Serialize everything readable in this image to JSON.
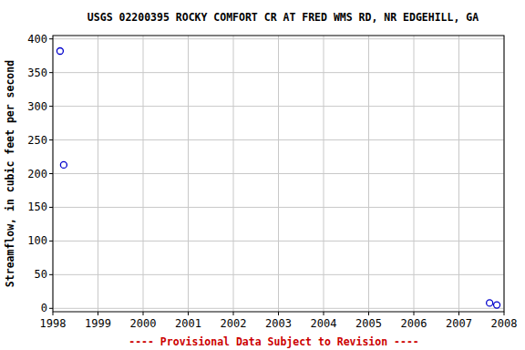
{
  "chart_data": {
    "type": "scatter",
    "title": "USGS 02200395 ROCKY COMFORT CR AT FRED WMS RD, NR EDGEHILL, GA",
    "y_label": "Streamflow, in cubic feet per second",
    "annotations": [
      "---- Provisional Data Subject to Revision ----"
    ],
    "x": [
      1998.16,
      1998.24,
      2007.68,
      2007.84
    ],
    "values": [
      382,
      213,
      8,
      5
    ],
    "color": "#0000cc",
    "marker": "circle-open",
    "xlim": [
      1998,
      2008
    ],
    "xticks": [
      1998,
      1999,
      2000,
      2001,
      2002,
      2003,
      2004,
      2005,
      2006,
      2007,
      2008
    ],
    "ylim": [
      -5,
      405
    ],
    "yticks": [
      0,
      50,
      100,
      150,
      200,
      250,
      300,
      350,
      400
    ],
    "grid": true
  }
}
